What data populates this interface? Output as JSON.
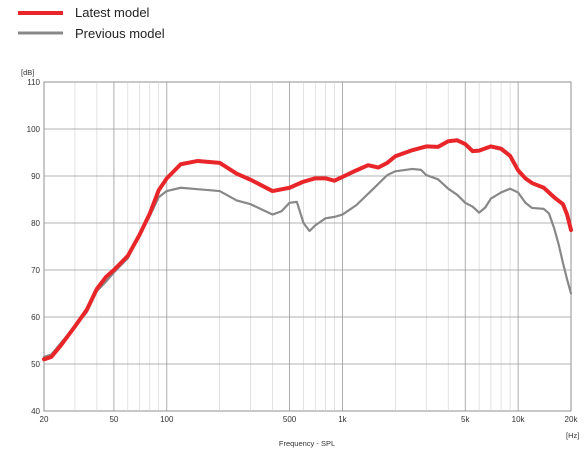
{
  "chart_data": {
    "type": "line",
    "title": "",
    "xlabel": "Frequency - SPL",
    "ylabel": "[dB]",
    "x_unit": "[Hz]",
    "x_scale": "log",
    "xlim": [
      20,
      20000
    ],
    "ylim": [
      40,
      110
    ],
    "grid": true,
    "legend_position": "top-left",
    "x_ticks": [
      {
        "value": 20,
        "label": "20"
      },
      {
        "value": 50,
        "label": "50"
      },
      {
        "value": 100,
        "label": "100"
      },
      {
        "value": 500,
        "label": "500"
      },
      {
        "value": 1000,
        "label": "1k"
      },
      {
        "value": 5000,
        "label": "5k"
      },
      {
        "value": 10000,
        "label": "10k"
      },
      {
        "value": 20000,
        "label": "20k"
      }
    ],
    "y_ticks": [
      {
        "value": 40,
        "label": "40"
      },
      {
        "value": 50,
        "label": "50"
      },
      {
        "value": 60,
        "label": "60"
      },
      {
        "value": 70,
        "label": "70"
      },
      {
        "value": 80,
        "label": "80"
      },
      {
        "value": 90,
        "label": "90"
      },
      {
        "value": 100,
        "label": "100"
      },
      {
        "value": 110,
        "label": "110"
      }
    ],
    "series": [
      {
        "name": "Latest model",
        "color": "#e8262a",
        "points": [
          [
            20,
            51
          ],
          [
            22,
            51.5
          ],
          [
            25,
            54
          ],
          [
            30,
            58
          ],
          [
            35,
            61.5
          ],
          [
            40,
            66
          ],
          [
            45,
            68.5
          ],
          [
            50,
            70
          ],
          [
            60,
            73
          ],
          [
            70,
            77.5
          ],
          [
            80,
            82
          ],
          [
            90,
            87
          ],
          [
            100,
            89.5
          ],
          [
            120,
            92.5
          ],
          [
            150,
            93.2
          ],
          [
            200,
            92.8
          ],
          [
            250,
            90.5
          ],
          [
            300,
            89.2
          ],
          [
            400,
            86.8
          ],
          [
            500,
            87.5
          ],
          [
            600,
            88.8
          ],
          [
            700,
            89.5
          ],
          [
            800,
            89.5
          ],
          [
            900,
            89
          ],
          [
            1000,
            89.8
          ],
          [
            1200,
            91.2
          ],
          [
            1400,
            92.3
          ],
          [
            1600,
            91.8
          ],
          [
            1800,
            92.8
          ],
          [
            2000,
            94.2
          ],
          [
            2500,
            95.5
          ],
          [
            3000,
            96.3
          ],
          [
            3500,
            96.2
          ],
          [
            4000,
            97.4
          ],
          [
            4500,
            97.6
          ],
          [
            5000,
            96.8
          ],
          [
            5500,
            95.3
          ],
          [
            6000,
            95.4
          ],
          [
            7000,
            96.3
          ],
          [
            8000,
            95.8
          ],
          [
            9000,
            94.3
          ],
          [
            10000,
            91.2
          ],
          [
            11000,
            89.5
          ],
          [
            12000,
            88.5
          ],
          [
            14000,
            87.5
          ],
          [
            16000,
            85.5
          ],
          [
            18000,
            84
          ],
          [
            19000,
            81.8
          ],
          [
            20000,
            78.5
          ]
        ]
      },
      {
        "name": "Previous model",
        "color": "#888888",
        "points": [
          [
            20,
            51.5
          ],
          [
            22,
            52
          ],
          [
            25,
            54.5
          ],
          [
            30,
            58
          ],
          [
            35,
            61
          ],
          [
            40,
            65.5
          ],
          [
            45,
            67.5
          ],
          [
            50,
            69.5
          ],
          [
            60,
            72.5
          ],
          [
            70,
            77.5
          ],
          [
            80,
            81.5
          ],
          [
            90,
            85.5
          ],
          [
            100,
            86.8
          ],
          [
            120,
            87.5
          ],
          [
            150,
            87.2
          ],
          [
            200,
            86.8
          ],
          [
            250,
            84.8
          ],
          [
            300,
            84
          ],
          [
            400,
            81.8
          ],
          [
            450,
            82.5
          ],
          [
            500,
            84.3
          ],
          [
            550,
            84.5
          ],
          [
            600,
            80
          ],
          [
            650,
            78.3
          ],
          [
            700,
            79.5
          ],
          [
            800,
            81
          ],
          [
            900,
            81.3
          ],
          [
            1000,
            81.8
          ],
          [
            1200,
            83.8
          ],
          [
            1500,
            87.3
          ],
          [
            1800,
            90.2
          ],
          [
            2000,
            91
          ],
          [
            2500,
            91.5
          ],
          [
            2800,
            91.3
          ],
          [
            3000,
            90.2
          ],
          [
            3500,
            89.3
          ],
          [
            4000,
            87.3
          ],
          [
            4500,
            86
          ],
          [
            5000,
            84.3
          ],
          [
            5500,
            83.5
          ],
          [
            6000,
            82.2
          ],
          [
            6500,
            83.3
          ],
          [
            7000,
            85.2
          ],
          [
            8000,
            86.5
          ],
          [
            9000,
            87.3
          ],
          [
            10000,
            86.5
          ],
          [
            11000,
            84.3
          ],
          [
            12000,
            83.2
          ],
          [
            14000,
            83
          ],
          [
            15000,
            82
          ],
          [
            16000,
            79
          ],
          [
            17000,
            75.5
          ],
          [
            18000,
            71.5
          ],
          [
            19000,
            68
          ],
          [
            20000,
            65
          ]
        ]
      }
    ]
  }
}
